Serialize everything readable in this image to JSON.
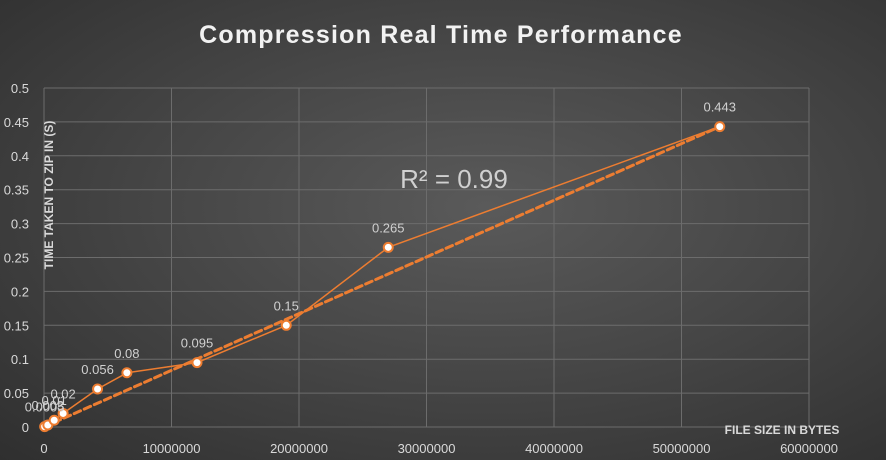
{
  "chart_data": {
    "type": "scatter",
    "title": "Compression Real Time Performance",
    "xlabel": "FILE SIZE IN BYTES",
    "ylabel": "TIME TAKEN TO ZIP IN (S)",
    "xlim": [
      0,
      60000000
    ],
    "ylim": [
      0,
      0.5
    ],
    "x_ticks": [
      "0",
      "10000000",
      "20000000",
      "30000000",
      "40000000",
      "50000000",
      "60000000"
    ],
    "y_ticks": [
      "0",
      "0.05",
      "0.1",
      "0.15",
      "0.2",
      "0.25",
      "0.3",
      "0.35",
      "0.4",
      "0.45",
      "0.5"
    ],
    "grid": true,
    "series": [
      {
        "x": [
          50000,
          300000,
          800000,
          1500000,
          4200000,
          6500000,
          12000000,
          19000000,
          27000000,
          53000000
        ],
        "y": [
          0.0005,
          0.003,
          0.01,
          0.02,
          0.056,
          0.08,
          0.095,
          0.15,
          0.265,
          0.443
        ],
        "labels": [
          "0.0005",
          "0.003",
          "0.01",
          "0.02",
          "0.056",
          "0.08",
          "0.095",
          "0.15",
          "0.265",
          "0.443"
        ],
        "color": "#ed7d31"
      }
    ],
    "trendline": {
      "type": "linear",
      "color": "#ed7d31",
      "style": "dashed",
      "from": [
        0,
        0
      ],
      "to": [
        53000000,
        0.443
      ]
    },
    "annotation": "R² = 0.99"
  }
}
